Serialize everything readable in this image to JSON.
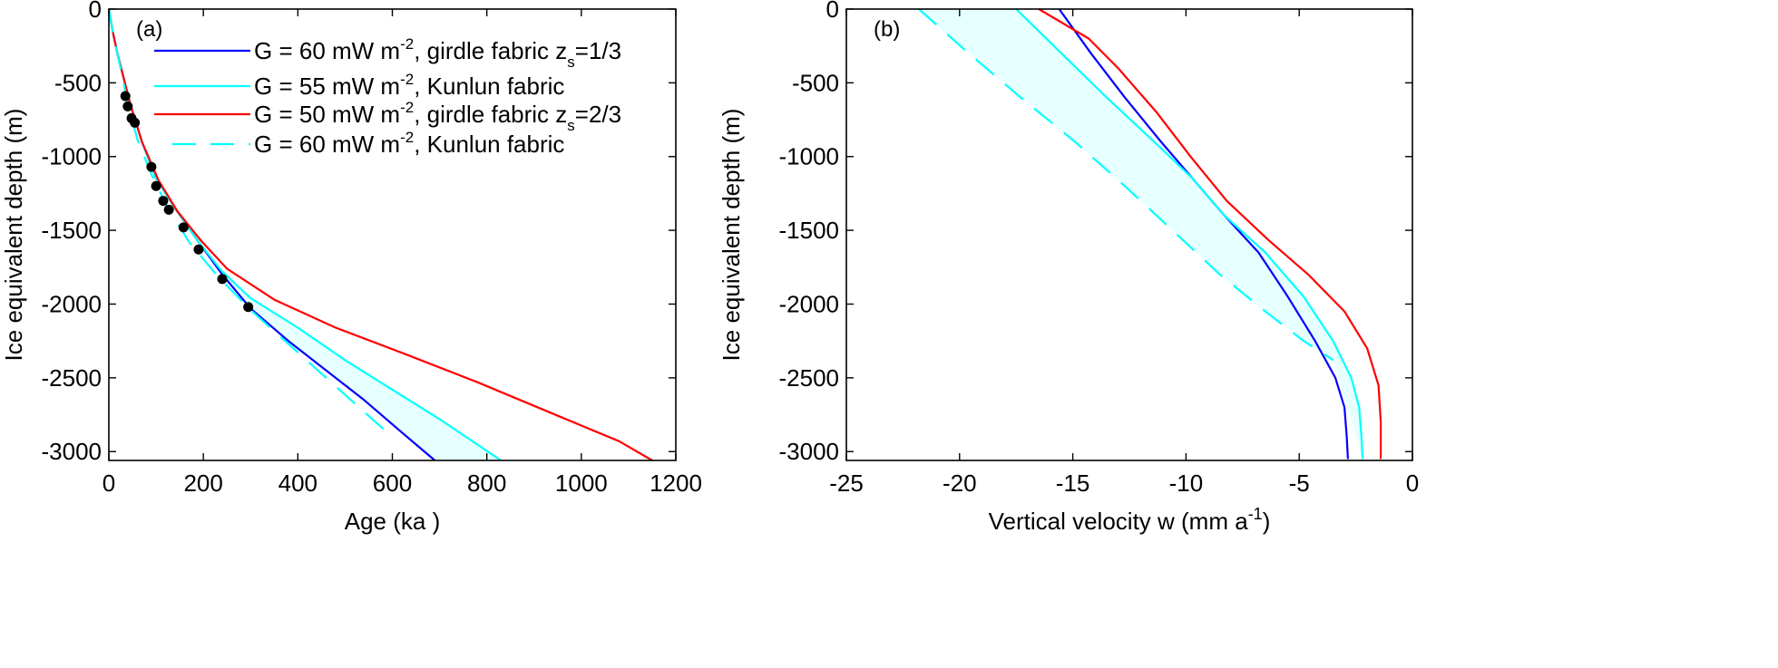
{
  "chart_data": [
    {
      "type": "line",
      "panel": "(a)",
      "xlabel": "Age (ka )",
      "ylabel": "Ice equivalent depth (m)",
      "xlim": [
        0,
        1200
      ],
      "ylim": [
        -3060,
        0
      ],
      "xticks": [
        0,
        200,
        400,
        600,
        800,
        1000,
        1200
      ],
      "yticks": [
        0,
        -500,
        -1000,
        -1500,
        -2000,
        -2500,
        -3000
      ],
      "grid": false,
      "legend_position": "top-right",
      "legend": [
        {
          "pre": "G = 60 mW m",
          "sup": "-2",
          "post": ", girdle fabric z",
          "sub": "s",
          "post2": "=1/3",
          "color": "#0000ff",
          "dash": false
        },
        {
          "pre": "G = 55 mW m",
          "sup": "-2",
          "post": ", Kunlun fabric",
          "sub": "",
          "post2": "",
          "color": "#00ffff",
          "dash": false
        },
        {
          "pre": "G = 50 mW m",
          "sup": "-2",
          "post": ", girdle fabric z",
          "sub": "s",
          "post2": "=2/3",
          "color": "#ff0000",
          "dash": false
        },
        {
          "pre": "G = 60 mW m",
          "sup": "-2",
          "post": ", Kunlun fabric",
          "sub": "",
          "post2": "",
          "color": "#00ffff",
          "dash": true
        }
      ],
      "series": [
        {
          "name": "G = 60 mW m-2, girdle fabric zs=1/3",
          "color": "#0000ff",
          "dash": false,
          "points": [
            [
              0,
              0
            ],
            [
              8,
              -150
            ],
            [
              18,
              -300
            ],
            [
              30,
              -450
            ],
            [
              45,
              -640
            ],
            [
              70,
              -900
            ],
            [
              100,
              -1150
            ],
            [
              140,
              -1350
            ],
            [
              190,
              -1580
            ],
            [
              240,
              -1800
            ],
            [
              300,
              -2030
            ],
            [
              380,
              -2250
            ],
            [
              460,
              -2450
            ],
            [
              540,
              -2650
            ],
            [
              620,
              -2870
            ],
            [
              690,
              -3060
            ]
          ]
        },
        {
          "name": "G = 55 mW m-2, Kunlun fabric",
          "color": "#00ffff",
          "dash": false,
          "points": [
            [
              0,
              0
            ],
            [
              8,
              -150
            ],
            [
              18,
              -300
            ],
            [
              30,
              -450
            ],
            [
              45,
              -640
            ],
            [
              70,
              -900
            ],
            [
              100,
              -1150
            ],
            [
              140,
              -1350
            ],
            [
              190,
              -1580
            ],
            [
              240,
              -1780
            ],
            [
              300,
              -1960
            ],
            [
              400,
              -2160
            ],
            [
              500,
              -2380
            ],
            [
              600,
              -2580
            ],
            [
              700,
              -2780
            ],
            [
              830,
              -3060
            ]
          ]
        },
        {
          "name": "G = 50 mW m-2, girdle fabric zs=2/3",
          "color": "#ff0000",
          "dash": false,
          "points": [
            [
              0,
              0
            ],
            [
              8,
              -150
            ],
            [
              18,
              -300
            ],
            [
              30,
              -450
            ],
            [
              45,
              -640
            ],
            [
              70,
              -900
            ],
            [
              105,
              -1160
            ],
            [
              145,
              -1370
            ],
            [
              195,
              -1570
            ],
            [
              250,
              -1760
            ],
            [
              350,
              -1970
            ],
            [
              480,
              -2160
            ],
            [
              620,
              -2330
            ],
            [
              780,
              -2530
            ],
            [
              960,
              -2770
            ],
            [
              1080,
              -2930
            ],
            [
              1150,
              -3060
            ]
          ]
        },
        {
          "name": "G = 60 mW m-2, Kunlun fabric",
          "color": "#00ffff",
          "dash": true,
          "points": [
            [
              0,
              0
            ],
            [
              8,
              -150
            ],
            [
              18,
              -300
            ],
            [
              28,
              -450
            ],
            [
              40,
              -640
            ],
            [
              60,
              -880
            ],
            [
              90,
              -1120
            ],
            [
              125,
              -1350
            ],
            [
              170,
              -1580
            ],
            [
              230,
              -1810
            ],
            [
              300,
              -2040
            ],
            [
              380,
              -2270
            ],
            [
              460,
              -2500
            ],
            [
              540,
              -2730
            ],
            [
              600,
              -2900
            ]
          ]
        }
      ],
      "shaded_band": {
        "between": [
          "G = 60 mW m-2, girdle fabric zs=1/3",
          "G = 55 mW m-2, Kunlun fabric"
        ],
        "color": "#e6ffff"
      },
      "markers": {
        "color": "#000000",
        "points": [
          [
            35,
            -590
          ],
          [
            40,
            -660
          ],
          [
            48,
            -740
          ],
          [
            55,
            -770
          ],
          [
            90,
            -1070
          ],
          [
            100,
            -1200
          ],
          [
            115,
            -1300
          ],
          [
            127,
            -1360
          ],
          [
            158,
            -1480
          ],
          [
            190,
            -1630
          ],
          [
            240,
            -1830
          ],
          [
            295,
            -2020
          ]
        ]
      }
    },
    {
      "type": "line",
      "panel": "(b)",
      "xlabel_pre": "Vertical velocity w (mm a",
      "xlabel_sup": "-1",
      "xlabel_post": ")",
      "ylabel": "Ice equivalent depth (m)",
      "xlim": [
        -25,
        0
      ],
      "ylim": [
        -3060,
        0
      ],
      "xticks": [
        -25,
        -20,
        -15,
        -10,
        -5,
        0
      ],
      "yticks": [
        0,
        -500,
        -1000,
        -1500,
        -2000,
        -2500,
        -3000
      ],
      "grid": false,
      "series": [
        {
          "name": "G = 60 mW m-2, girdle fabric zs=1/3",
          "color": "#0000ff",
          "dash": false,
          "points": [
            [
              -15.6,
              0
            ],
            [
              -14.2,
              -300
            ],
            [
              -12.7,
              -600
            ],
            [
              -11.1,
              -900
            ],
            [
              -9.7,
              -1150
            ],
            [
              -8.3,
              -1400
            ],
            [
              -6.8,
              -1650
            ],
            [
              -5.5,
              -1950
            ],
            [
              -4.3,
              -2250
            ],
            [
              -3.4,
              -2500
            ],
            [
              -3.0,
              -2700
            ],
            [
              -2.9,
              -2900
            ],
            [
              -2.85,
              -3050
            ]
          ]
        },
        {
          "name": "G = 55 mW m-2, Kunlun fabric",
          "color": "#00ffff",
          "dash": false,
          "points": [
            [
              -17.5,
              0
            ],
            [
              -15.5,
              -300
            ],
            [
              -13.5,
              -600
            ],
            [
              -11.4,
              -900
            ],
            [
              -9.7,
              -1150
            ],
            [
              -8.3,
              -1400
            ],
            [
              -6.5,
              -1650
            ],
            [
              -4.8,
              -1950
            ],
            [
              -3.5,
              -2250
            ],
            [
              -2.7,
              -2500
            ],
            [
              -2.35,
              -2700
            ],
            [
              -2.25,
              -2900
            ],
            [
              -2.2,
              -3050
            ]
          ]
        },
        {
          "name": "G = 50 mW m-2, girdle fabric zs=2/3",
          "color": "#ff0000",
          "dash": false,
          "points": [
            [
              -16.5,
              0
            ],
            [
              -14.3,
              -200
            ],
            [
              -13.0,
              -400
            ],
            [
              -11.3,
              -700
            ],
            [
              -9.8,
              -1000
            ],
            [
              -8.2,
              -1300
            ],
            [
              -6.4,
              -1560
            ],
            [
              -4.6,
              -1800
            ],
            [
              -3.0,
              -2050
            ],
            [
              -2.0,
              -2300
            ],
            [
              -1.5,
              -2550
            ],
            [
              -1.4,
              -2800
            ],
            [
              -1.4,
              -3050
            ]
          ]
        },
        {
          "name": "G = 60 mW m-2, Kunlun fabric",
          "color": "#00ffff",
          "dash": true,
          "points": [
            [
              -21.8,
              0
            ],
            [
              -19.6,
              -300
            ],
            [
              -17.3,
              -600
            ],
            [
              -14.9,
              -900
            ],
            [
              -12.7,
              -1200
            ],
            [
              -10.6,
              -1500
            ],
            [
              -8.5,
              -1800
            ],
            [
              -6.5,
              -2050
            ],
            [
              -4.8,
              -2250
            ],
            [
              -3.5,
              -2380
            ]
          ]
        }
      ],
      "shaded_band": {
        "between": [
          "G = 55 mW m-2, Kunlun fabric",
          "G = 60 mW m-2, Kunlun fabric"
        ],
        "color": "#e6ffff"
      }
    }
  ]
}
